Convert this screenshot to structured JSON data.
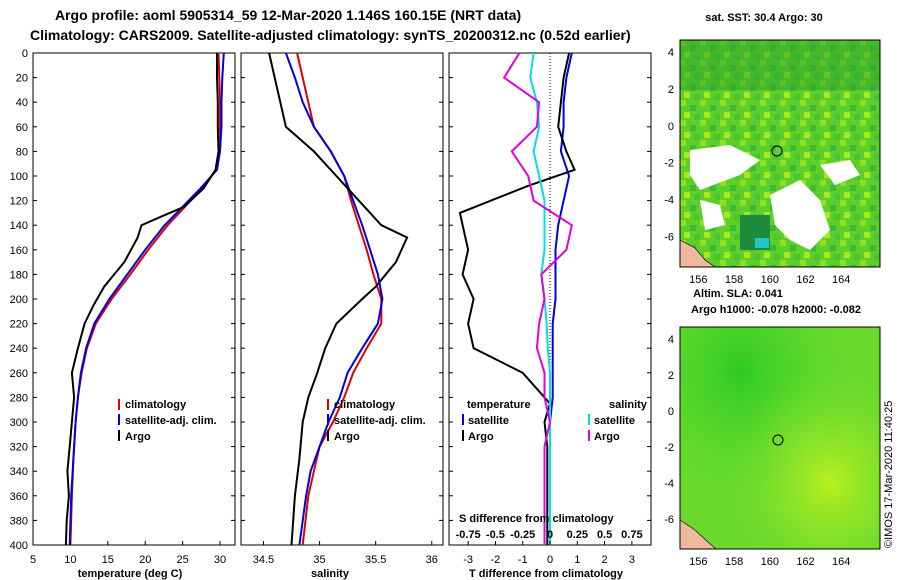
{
  "header": {
    "line1": "Argo profile: aoml 5905314_59 12-Mar-2020 1.146S 160.15E (NRT data)",
    "line2": "Climatology: CARS2009. Satellite-adjusted climatology: synTS_20200312.nc (0.52d earlier)"
  },
  "colors": {
    "climatology": "#e00000",
    "satellite": "#0000e0",
    "argo": "#000000",
    "sat_temp_diff": "#00e0e0",
    "sat_sal_diff": "#e000e0"
  },
  "chart_data": [
    {
      "id": "temperature",
      "type": "line",
      "xlabel": "temperature (deg C)",
      "ylabel": "",
      "xlim": [
        5,
        32
      ],
      "ylim": [
        400,
        0
      ],
      "xticks": [
        5,
        10,
        15,
        20,
        25,
        30
      ],
      "yticks": [
        0,
        20,
        40,
        60,
        80,
        100,
        120,
        140,
        160,
        180,
        200,
        220,
        240,
        260,
        280,
        300,
        320,
        340,
        360,
        380,
        400
      ],
      "legend": [
        "climatology",
        "satellite-adj. clim.",
        "Argo"
      ],
      "series": [
        {
          "name": "climatology",
          "color": "#e00000",
          "x": [
            29.8,
            29.9,
            30.0,
            30.0,
            29.9,
            29.5,
            27.6,
            25.3,
            23.0,
            20.4,
            18.0,
            15.5,
            13.4,
            12.2,
            11.5,
            11.0,
            10.7,
            10.4,
            10.2,
            10.0
          ],
          "y": [
            0,
            20,
            40,
            60,
            80,
            95,
            110,
            125,
            140,
            160,
            180,
            200,
            220,
            240,
            260,
            280,
            300,
            330,
            360,
            400
          ]
        },
        {
          "name": "satellite-adj. clim.",
          "color": "#0000e0",
          "x": [
            30.5,
            30.3,
            30.2,
            30.2,
            30.0,
            29.6,
            27.4,
            25.0,
            22.6,
            20.0,
            17.6,
            15.2,
            13.2,
            12.1,
            11.4,
            11.0,
            10.7,
            10.4,
            10.1,
            9.9
          ],
          "y": [
            0,
            20,
            40,
            60,
            80,
            95,
            110,
            125,
            140,
            160,
            180,
            200,
            220,
            240,
            260,
            280,
            300,
            330,
            360,
            400
          ]
        },
        {
          "name": "Argo",
          "color": "#000000",
          "x": [
            29.6,
            29.6,
            29.7,
            29.7,
            29.8,
            29.4,
            27.8,
            25.2,
            22.5,
            19.5,
            19.0,
            17.2,
            14.5,
            13.1,
            11.9,
            11.0,
            10.2,
            10.5,
            10.2,
            9.9,
            9.6,
            9.8,
            9.5,
            9.4
          ],
          "y": [
            0,
            20,
            40,
            60,
            80,
            95,
            110,
            125,
            132,
            140,
            150,
            170,
            190,
            205,
            220,
            240,
            260,
            280,
            300,
            320,
            340,
            360,
            380,
            400
          ]
        }
      ]
    },
    {
      "id": "salinity",
      "type": "line",
      "xlabel": "salinity",
      "xlim": [
        34.3,
        36.1
      ],
      "ylim": [
        400,
        0
      ],
      "xticks": [
        34.5,
        35,
        35.5,
        36
      ],
      "xtick_labels": [
        "34.5",
        "35",
        "35.5",
        "36"
      ],
      "legend": [
        "climatology",
        "satellite-adj. clim.",
        "Argo"
      ],
      "series": [
        {
          "name": "climatology",
          "color": "#e00000",
          "x": [
            34.8,
            34.85,
            34.9,
            34.95,
            35.1,
            35.22,
            35.28,
            35.35,
            35.42,
            35.48,
            35.55,
            35.55,
            35.42,
            35.3,
            35.22,
            35.12,
            35.0,
            34.95,
            34.9,
            34.85
          ],
          "y": [
            0,
            20,
            40,
            60,
            80,
            100,
            120,
            140,
            160,
            180,
            200,
            220,
            240,
            260,
            280,
            300,
            320,
            340,
            360,
            400
          ]
        },
        {
          "name": "satellite-adj. clim.",
          "color": "#0000e0",
          "x": [
            34.7,
            34.78,
            34.85,
            34.95,
            35.1,
            35.22,
            35.3,
            35.38,
            35.45,
            35.52,
            35.56,
            35.52,
            35.38,
            35.25,
            35.18,
            35.08,
            35.0,
            34.92,
            34.88,
            34.82
          ],
          "y": [
            0,
            20,
            40,
            60,
            80,
            100,
            120,
            140,
            160,
            180,
            200,
            220,
            240,
            260,
            280,
            300,
            320,
            340,
            360,
            400
          ]
        },
        {
          "name": "Argo",
          "color": "#000000",
          "x": [
            34.55,
            34.6,
            34.65,
            34.7,
            34.95,
            35.15,
            35.35,
            35.55,
            35.78,
            35.68,
            35.5,
            35.38,
            35.15,
            35.05,
            34.98,
            34.9,
            34.85,
            34.82,
            34.78,
            34.75
          ],
          "y": [
            0,
            20,
            40,
            60,
            80,
            100,
            120,
            140,
            150,
            170,
            190,
            200,
            220,
            240,
            260,
            280,
            300,
            330,
            360,
            400
          ]
        }
      ]
    },
    {
      "id": "difference",
      "type": "line",
      "xlabel": "T difference from climatology",
      "top_label": "S difference from climatology",
      "xlim": [
        -3.7,
        3.7
      ],
      "ylim": [
        400,
        0
      ],
      "xticks": [
        -3,
        -2,
        -1,
        0,
        1,
        2,
        3
      ],
      "top_ticks": [
        "-0.75",
        "-0.5",
        "-0.25",
        "0",
        "0.25",
        "0.5",
        "0.75"
      ],
      "legend_left_title": "temperature",
      "legend_right_title": "salinity",
      "legend": [
        "satellite",
        "Argo"
      ],
      "series": [
        {
          "name": "T satellite",
          "color": "#0000e0",
          "x": [
            0.8,
            0.6,
            0.5,
            0.5,
            0.4,
            0.7,
            0.5,
            0.3,
            0.2,
            0.2,
            0.2,
            0.1,
            0.1,
            0.1,
            0.1,
            0.0,
            0.0,
            0.0,
            0.0
          ],
          "y": [
            0,
            20,
            40,
            60,
            80,
            100,
            120,
            140,
            160,
            180,
            200,
            220,
            240,
            260,
            280,
            300,
            320,
            360,
            400
          ]
        },
        {
          "name": "T Argo",
          "color": "#000000",
          "x": [
            0.7,
            0.5,
            0.4,
            0.3,
            0.6,
            0.9,
            -0.8,
            -3.3,
            -3.0,
            -3.2,
            -2.8,
            -3.0,
            -2.8,
            -1.0,
            0.0,
            -0.2,
            -0.1,
            -0.1,
            -0.1
          ],
          "y": [
            0,
            20,
            40,
            60,
            80,
            95,
            108,
            130,
            160,
            180,
            200,
            220,
            240,
            260,
            285,
            300,
            320,
            360,
            400
          ]
        },
        {
          "name": "S satellite",
          "color": "#00e0e0",
          "x": [
            -0.15,
            -0.18,
            -0.12,
            -0.1,
            -0.15,
            -0.1,
            -0.05,
            -0.05,
            -0.05,
            -0.08,
            -0.05,
            -0.03,
            -0.02,
            0.0,
            0.0,
            0.0,
            0.0,
            0.0,
            0.0
          ],
          "y": [
            0,
            20,
            40,
            60,
            80,
            100,
            120,
            140,
            160,
            180,
            200,
            220,
            240,
            260,
            280,
            300,
            320,
            360,
            400
          ]
        },
        {
          "name": "S Argo",
          "color": "#e000e0",
          "x": [
            -0.28,
            -0.42,
            -0.1,
            -0.12,
            -0.35,
            -0.2,
            -0.15,
            0.2,
            0.15,
            -0.08,
            -0.05,
            -0.1,
            -0.12,
            -0.05,
            -0.05,
            0.0,
            -0.05,
            -0.05,
            -0.05
          ],
          "y": [
            0,
            20,
            40,
            60,
            80,
            100,
            120,
            140,
            160,
            180,
            200,
            220,
            240,
            260,
            280,
            300,
            320,
            360,
            400
          ]
        }
      ]
    }
  ],
  "maps": [
    {
      "id": "sst",
      "title": "sat. SST: 30.4 Argo: 30",
      "xticks": [
        "156",
        "158",
        "160",
        "162",
        "164"
      ],
      "yticks": [
        "4",
        "2",
        "0",
        "-2",
        "-4",
        "-6"
      ]
    },
    {
      "id": "sla",
      "title1": "Altim.  SLA: 0.041",
      "title2": "Argo h1000: -0.078 h2000: -0.082",
      "xticks": [
        "156",
        "158",
        "160",
        "162",
        "164"
      ],
      "yticks": [
        "4",
        "2",
        "0",
        "-2",
        "-4",
        "-6"
      ]
    }
  ],
  "credit": "©IMOS 17-Mar-2020 11:40:25"
}
